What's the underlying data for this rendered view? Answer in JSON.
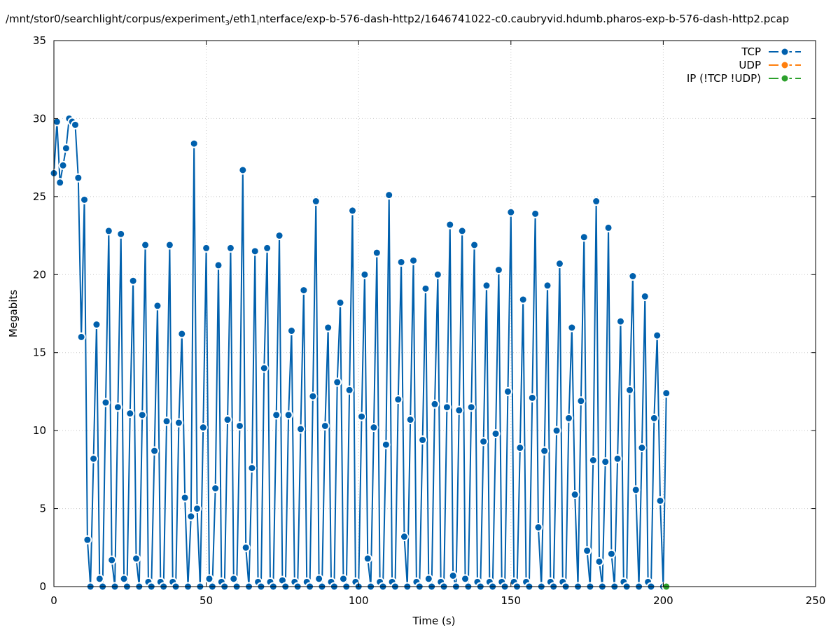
{
  "chart_data": {
    "type": "line",
    "title": {
      "part1": "/mnt/stor0/searchlight/corpus/experiment",
      "sub1": "3",
      "part2": "/eth1",
      "sub2": "i",
      "part3": "nterface/exp-b-576-dash-http2/1646741022-c0.caubryvid.hdumb.pharos-exp-b-576-dash-http2.pcap"
    },
    "xlabel": "Time (s)",
    "ylabel": "Megabits",
    "xlim": [
      0,
      250
    ],
    "ylim": [
      0,
      35
    ],
    "xticks": [
      0,
      50,
      100,
      150,
      200,
      250
    ],
    "yticks": [
      0,
      5,
      10,
      15,
      20,
      25,
      30,
      35
    ],
    "grid": true,
    "legend_position": "top-right",
    "series": [
      {
        "name": "TCP",
        "color": "#0060ad",
        "x": [
          0,
          1,
          2,
          3,
          4,
          5,
          6,
          7,
          8,
          9,
          10,
          11,
          12,
          13,
          14,
          15,
          16,
          17,
          18,
          19,
          20,
          21,
          22,
          23,
          24,
          25,
          26,
          27,
          28,
          29,
          30,
          31,
          32,
          33,
          34,
          35,
          36,
          37,
          38,
          39,
          40,
          41,
          42,
          43,
          44,
          45,
          46,
          47,
          48,
          49,
          50,
          51,
          52,
          53,
          54,
          55,
          56,
          57,
          58,
          59,
          60,
          61,
          62,
          63,
          64,
          65,
          66,
          67,
          68,
          69,
          70,
          71,
          72,
          73,
          74,
          75,
          76,
          77,
          78,
          79,
          80,
          81,
          82,
          83,
          84,
          85,
          86,
          87,
          88,
          89,
          90,
          91,
          92,
          93,
          94,
          95,
          96,
          97,
          98,
          99,
          100,
          101,
          102,
          103,
          104,
          105,
          106,
          107,
          108,
          109,
          110,
          111,
          112,
          113,
          114,
          115,
          116,
          117,
          118,
          119,
          120,
          121,
          122,
          123,
          124,
          125,
          126,
          127,
          128,
          129,
          130,
          131,
          132,
          133,
          134,
          135,
          136,
          137,
          138,
          139,
          140,
          141,
          142,
          143,
          144,
          145,
          146,
          147,
          148,
          149,
          150,
          151,
          152,
          153,
          154,
          155,
          156,
          157,
          158,
          159,
          160,
          161,
          162,
          163,
          164,
          165,
          166,
          167,
          168,
          169,
          170,
          171,
          172,
          173,
          174,
          175,
          176,
          177,
          178,
          179,
          180,
          181,
          182,
          183,
          184,
          185,
          186,
          187,
          188,
          189,
          190,
          191,
          192,
          193,
          194,
          195,
          196,
          197,
          198,
          199,
          200,
          201
        ],
        "y": [
          26.5,
          29.8,
          25.9,
          27.0,
          28.1,
          30.0,
          29.8,
          29.6,
          26.2,
          16.0,
          24.8,
          3.0,
          0,
          8.2,
          16.8,
          0.5,
          0,
          11.8,
          22.8,
          1.7,
          0,
          11.5,
          22.6,
          0.5,
          0,
          11.1,
          19.6,
          1.8,
          0,
          11.0,
          21.9,
          0.3,
          0,
          8.7,
          18.0,
          0.3,
          0,
          10.6,
          21.9,
          0.3,
          0,
          10.5,
          16.2,
          5.7,
          0,
          4.5,
          28.4,
          5.0,
          0,
          10.2,
          21.7,
          0.5,
          0,
          6.3,
          20.6,
          0.3,
          0,
          10.7,
          21.7,
          0.5,
          0,
          10.3,
          26.7,
          2.5,
          0,
          7.6,
          21.5,
          0.3,
          0,
          14.0,
          21.7,
          0.3,
          0,
          11.0,
          22.5,
          0.4,
          0,
          11.0,
          16.4,
          0.3,
          0,
          10.1,
          19.0,
          0.3,
          0,
          12.2,
          24.7,
          0.5,
          0,
          10.3,
          16.6,
          0.3,
          0,
          13.1,
          18.2,
          0.5,
          0,
          12.6,
          24.1,
          0.3,
          0,
          10.9,
          20.0,
          1.8,
          0,
          10.2,
          21.4,
          0.3,
          0,
          9.1,
          25.1,
          0.3,
          0,
          12.0,
          20.8,
          3.2,
          0,
          10.7,
          20.9,
          0.3,
          0,
          9.4,
          19.1,
          0.5,
          0,
          11.7,
          20.0,
          0.3,
          0,
          11.5,
          23.2,
          0.7,
          0,
          11.3,
          22.8,
          0.5,
          0,
          11.5,
          21.9,
          0.3,
          0,
          9.3,
          19.3,
          0.3,
          0,
          9.8,
          20.3,
          0.3,
          0,
          12.5,
          24.0,
          0.3,
          0,
          8.9,
          18.4,
          0.3,
          0,
          12.1,
          23.9,
          3.8,
          0,
          8.7,
          19.3,
          0.3,
          0,
          10.0,
          20.7,
          0.3,
          0,
          10.8,
          16.6,
          5.9,
          0,
          11.9,
          22.4,
          2.3,
          0,
          8.1,
          24.7,
          1.6,
          0,
          8.0,
          23.0,
          2.1,
          0,
          8.2,
          17.0,
          0.3,
          0,
          12.6,
          19.9,
          6.2,
          0,
          8.9,
          18.6,
          0.3,
          0,
          10.8,
          16.1,
          5.5,
          0,
          12.4
        ]
      },
      {
        "name": "UDP",
        "color": "#ff7f0e",
        "x": [],
        "y": []
      },
      {
        "name": "IP (!TCP  !UDP)",
        "color": "#2ca02c",
        "x": [
          201
        ],
        "y": [
          0
        ]
      }
    ]
  }
}
